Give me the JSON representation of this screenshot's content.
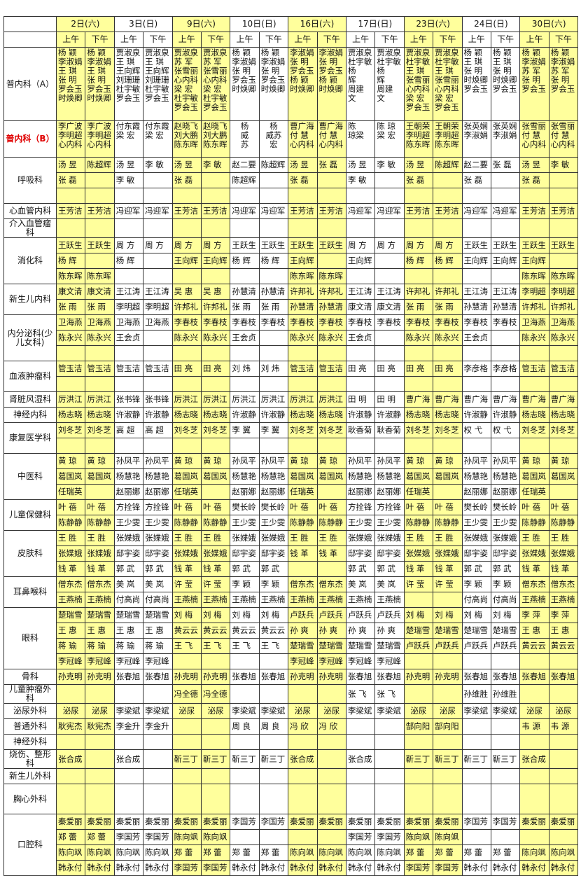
{
  "header": {
    "days": [
      "2日(六)",
      "3日(日)",
      "9日(六)",
      "10日(日)",
      "16日(六)",
      "17日(日)",
      "23日(六)",
      "24日(日)",
      "30日(六)"
    ],
    "am": "上午",
    "pm": "下午"
  },
  "colors": {
    "saturday_highlight": "#ffff9c",
    "highlight_dept_label": "#e00000"
  },
  "departments": [
    {
      "name": "普内科（A）",
      "rows": [
        [
          "杨 颖\n李淑娟\n王 琪\n张 明\n罗会玉\n时焕卿",
          "杨 颖\n李淑娟\n王 琪\n张 明\n罗会玉\n时焕卿",
          "贾淑泉\n王 琪\n王向辉\n刘珊珊\n杜宇敏\n罗会玉",
          "贾淑泉\n王 琪\n王向辉\n刘珊珊\n杜宇敏\n罗会玉",
          "贾淑泉\n苏 军\n张雪丽\n心内科\n梁 宏\n杜宇敏\n罗会玉",
          "贾淑泉\n苏 军\n张雪丽\n心内科\n梁 宏\n杜宇敏\n罗会玉",
          "杨 颖\n李淑娟\n张 明\n罗会玉\n时焕卿",
          "杨 颖\n李淑娟\n张 明\n罗会玉\n时焕卿",
          "李淑娟\n张 明\n罗会玉\n杨 颖\n时焕卿",
          "李淑娟\n张 明\n罗会玉\n杨 颖\n时焕卿",
          "贾淑泉\n杜宇敏\n杨\n辉\n周建\n文",
          "贾淑泉\n杜宇敏\n杨\n辉\n周建\n文",
          "贾淑泉\n杜宇敏\n王 琪\n张雪丽\n心内科\n梁 宏\n罗会玉",
          "贾淑泉\n杜宇敏\n王 琪\n张雪丽\n心内科\n梁 宏\n罗会玉",
          "杨 颖\n王 琪\n张 明\n时焕卿\n罗会玉",
          "杨 颖\n王 琪\n张 明\n时焕卿\n罗会玉",
          "杨 颖\n李淑娟\n苏 军\n张 明\n罗会玉",
          "杨 颖\n李淑娟\n苏 军\n张 明\n罗会玉"
        ]
      ]
    },
    {
      "name": "普内科（B）",
      "rows": [
        [
          "李广波\n李明超\n心内科",
          "李广波\n李明超\n心内科",
          "付东霞\n梁 宏",
          "付东霞\n梁 宏",
          "赵晓飞\n刘大鹏\n陈东晖",
          "赵晓飞\n刘大鹏\n陈东晖",
          "杨\n威\n苏",
          "杨\n威苏\n宏",
          "曹广海\n付 慧\n心内科",
          "曹广海\n付 慧\n心内科",
          "陈\n琼梁",
          "陈 琼\n梁 宏",
          "王朝荣\n李明超\n陈东晖",
          "王朝荣\n李明超\n陈东晖",
          "张英娴\n李淑娟",
          "张英娴\n李淑娟",
          "张雪丽\n付 慧\n心内科",
          "张雪丽\n付 慧\n心内科"
        ]
      ]
    },
    {
      "name": "呼吸科",
      "rows": [
        [
          "汤 昱",
          "陈超辉",
          "汤 昱",
          "李 敏",
          "汤 昱",
          "李 敏",
          "赵二要",
          "陈超辉",
          "汤 昱",
          "张 磊",
          "汤 昱",
          "李 敏",
          "汤 昱",
          "陈超辉",
          "赵二要",
          "张 磊",
          "汤 昱",
          "李 敏"
        ],
        [
          "张 磊",
          "",
          "李 敏",
          "",
          "张 磊",
          "",
          "陈超辉",
          "",
          "张 磊",
          "",
          "李 敏",
          "",
          "张 磊",
          "",
          "张 磊",
          "",
          "张 磊",
          ""
        ],
        [
          "",
          "",
          "",
          "",
          "",
          "",
          "",
          "",
          "",
          "",
          "",
          "",
          "",
          "",
          "",
          "",
          "",
          ""
        ]
      ]
    },
    {
      "name": "心血管内科",
      "rows": [
        [
          "王芳洁",
          "王芳洁",
          "冯迎军",
          "冯迎军",
          "王芳洁",
          "王芳洁",
          "冯迎军",
          "冯迎军",
          "王芳洁",
          "王芳洁",
          "冯迎军",
          "冯迎军",
          "王芳洁",
          "王芳洁",
          "冯迎军",
          "冯迎军",
          "王芳洁",
          "王芳洁"
        ]
      ]
    },
    {
      "name": "介入血管瘤科",
      "rows": [
        [
          "",
          "",
          "",
          "",
          "",
          "",
          "",
          "",
          "",
          "",
          "",
          "",
          "",
          "",
          "",
          "",
          "",
          ""
        ]
      ]
    },
    {
      "name": "消化科",
      "rows": [
        [
          "王跃生",
          "王跃生",
          "周 方",
          "周 方",
          "周 方",
          "周 方",
          "王跃生",
          "王跃生",
          "王跃生",
          "王跃生",
          "周 方",
          "周 方",
          "周 方",
          "周 方",
          "王跃生",
          "王跃生",
          "王跃生",
          "王跃生"
        ],
        [
          "杨 辉",
          "",
          "杨 辉",
          "",
          "王向辉",
          "王向辉",
          "杨 辉",
          "杨 辉",
          "王向辉",
          "",
          "王向辉",
          "",
          "杨 辉",
          "杨 辉",
          "王向辉",
          "王向辉",
          "王向辉",
          ""
        ],
        [
          "陈东晖",
          "陈东晖",
          "",
          "",
          "",
          "",
          "",
          "",
          "陈东晖",
          "陈东晖",
          "",
          "",
          "",
          "",
          "",
          "",
          "陈东晖",
          "陈东晖"
        ]
      ]
    },
    {
      "name": "新生儿内科",
      "rows": [
        [
          "康文清",
          "康文清",
          "王江涛",
          "王江涛",
          "吴 惠",
          "吴 惠",
          "孙慧清",
          "孙慧清",
          "许邦礼",
          "许邦礼",
          "王江涛",
          "王江涛",
          "许邦礼",
          "许邦礼",
          "王江涛",
          "王江涛",
          "李明超",
          "李明超"
        ],
        [
          "张 雨",
          "张 雨",
          "李明超",
          "李明超",
          "许邦礼",
          "许邦礼",
          "张 雨",
          "张 雨",
          "孙慧清",
          "孙慧清",
          "康文清",
          "康文清",
          "张 雨",
          "张 雨",
          "孙慧清",
          "孙慧清",
          "许邦礼",
          "许邦礼"
        ]
      ]
    },
    {
      "name": "内分泌科(少儿女科)",
      "rows": [
        [
          "卫海燕",
          "卫海燕",
          "卫海燕",
          "卫海燕",
          "李春枝",
          "李春枝",
          "李春枝",
          "李春枝",
          "李春枝",
          "李春枝",
          "李春枝",
          "李春枝",
          "李春枝",
          "李春枝",
          "李春枝",
          "李春枝",
          "卫海燕",
          "卫海燕"
        ],
        [
          "陈永兴",
          "陈永兴",
          "王会贞",
          "",
          "陈永兴",
          "陈永兴",
          "王会贞",
          "",
          "陈永兴",
          "陈永兴",
          "王会贞",
          "",
          "陈永兴",
          "陈永兴",
          "王会贞",
          "",
          "陈永兴",
          "陈永兴"
        ],
        [
          "",
          "",
          "",
          "",
          "",
          "",
          "",
          "",
          "",
          "",
          "",
          "",
          "",
          "",
          "",
          "",
          "",
          ""
        ]
      ]
    },
    {
      "name": "血液肿瘤科",
      "rows": [
        [
          "管玉洁",
          "管玉洁",
          "管玉洁",
          "管玉洁",
          "田 亮",
          "田 亮",
          "刘 炜",
          "刘 炜",
          "管玉洁",
          "管玉洁",
          "田 亮",
          "田 亮",
          "田 亮",
          "田 亮",
          "李彦格",
          "李彦格",
          "管玉洁",
          "管玉洁"
        ],
        [
          "",
          "",
          "",
          "",
          "",
          "",
          "",
          "",
          "",
          "",
          "",
          "",
          "",
          "",
          "",
          "",
          "",
          ""
        ]
      ]
    },
    {
      "name": "肾脏风湿科",
      "rows": [
        [
          "厉洪江",
          "厉洪江",
          "张书锋",
          "张书锋",
          "厉洪江",
          "厉洪江",
          "厉洪江",
          "厉洪江",
          "厉洪江",
          "厉洪江",
          "田 明",
          "田 明",
          "曹广海",
          "曹广海",
          "曹广海",
          "曹广海",
          "曹广海",
          "曹广海"
        ]
      ]
    },
    {
      "name": "神经内科",
      "rows": [
        [
          "杨志晓",
          "杨志晓",
          "许淑静",
          "许淑静",
          "杨志晓",
          "杨志晓",
          "许淑静",
          "许淑静",
          "杨志晓",
          "杨志晓",
          "许淑静",
          "许淑静",
          "杨志晓",
          "杨志晓",
          "许淑静",
          "许淑静",
          "杨志晓",
          "杨志晓"
        ]
      ]
    },
    {
      "name": "康复医学科",
      "rows": [
        [
          "刘冬芝",
          "刘冬芝",
          "高 超",
          "高 超",
          "刘冬芝",
          "刘冬芝",
          "李 翼",
          "李 翼",
          "刘冬芝",
          "刘冬芝",
          "耿香菊",
          "耿香菊",
          "刘冬芝",
          "刘冬芝",
          "权 弋",
          "权 弋",
          "刘冬芝",
          "刘冬芝"
        ],
        [
          "",
          "",
          "",
          "",
          "",
          "",
          "",
          "",
          "",
          "",
          "",
          "",
          "",
          "",
          "",
          "",
          "",
          ""
        ]
      ]
    },
    {
      "name": "中医科",
      "rows": [
        [
          "黄 琼",
          "黄 琼",
          "孙凤平",
          "孙凤平",
          "黄 琼",
          "黄 琼",
          "孙凤平",
          "孙凤平",
          "黄 琼",
          "黄 琼",
          "孙凤平",
          "孙凤平",
          "黄 琼",
          "黄 琼",
          "孙凤平",
          "孙凤平",
          "黄 琼",
          "黄 琼"
        ],
        [
          "葛国岚",
          "葛国岚",
          "杨慧艳",
          "杨慧艳",
          "葛国岚",
          "葛国岚",
          "杨慧艳",
          "杨慧艳",
          "葛国岚",
          "葛国岚",
          "杨慧艳",
          "杨慧艳",
          "葛国岚",
          "葛国岚",
          "杨慧艳",
          "杨慧艳",
          "葛国岚",
          "葛国岚"
        ],
        [
          "任瑞英",
          "",
          "赵丽娜",
          "赵丽娜",
          "任瑞英",
          "",
          "赵丽娜",
          "赵丽娜",
          "任瑞英",
          "",
          "赵丽娜",
          "赵丽娜",
          "任瑞英",
          "",
          "赵丽娜",
          "赵丽娜",
          "任瑞英",
          ""
        ]
      ]
    },
    {
      "name": "儿童保健科",
      "rows": [
        [
          "叶 蓓",
          "叶 蓓",
          "方拴锋",
          "方拴锋",
          "叶 蓓",
          "叶 蓓",
          "樊长岭",
          "樊长岭",
          "叶 蓓",
          "叶 蓓",
          "方拴锋",
          "方拴锋",
          "叶 蓓",
          "叶 蓓",
          "樊长岭",
          "樊长岭",
          "叶 蓓",
          "叶 蓓"
        ],
        [
          "陈静静",
          "陈静静",
          "王少雯",
          "王少雯",
          "陈静静",
          "陈静静",
          "王少雯",
          "王少雯",
          "陈静静",
          "陈静静",
          "王少雯",
          "王少雯",
          "陈静静",
          "陈静静",
          "王少雯",
          "王少雯",
          "陈静静",
          "陈静静"
        ]
      ]
    },
    {
      "name": "皮肤科",
      "rows": [
        [
          "王 胜",
          "王 胜",
          "张媟娥",
          "张媟娥",
          "王 胜",
          "王 胜",
          "张媟娥",
          "张媟娥",
          "王 胜",
          "王 胜",
          "张媟娥",
          "张媟娥",
          "王 胜",
          "王 胜",
          "张媟娥",
          "张媟娥",
          "王 胜",
          "王 胜"
        ],
        [
          "张媟娥",
          "张媟娥",
          "邸宇姿",
          "邸宇姿",
          "张媟娥",
          "张媟娥",
          "邸宇姿",
          "邸宇姿",
          "钱 革",
          "钱 革",
          "邸宇姿",
          "邸宇姿",
          "张媟娥",
          "张媟娥",
          "邸宇姿",
          "邸宇姿",
          "张媟娥",
          "张媟娥"
        ],
        [
          "钱 革",
          "钱 革",
          "郭 武",
          "郭 武",
          "钱 革",
          "钱 革",
          "郭 武",
          "郭 武",
          "",
          "",
          "郭 武",
          "郭 武",
          "钱 革",
          "钱 革",
          "郭 武",
          "郭 武",
          "钱 革",
          "钱 革"
        ]
      ]
    },
    {
      "name": "耳鼻喉科",
      "rows": [
        [
          "僧东杰",
          "僧东杰",
          "美 岚",
          "美 岚",
          "许 莹",
          "许 莹",
          "李 颖",
          "李 颖",
          "僧东杰",
          "僧东杰",
          "美 岚",
          "美 岚",
          "许 莹",
          "许 莹",
          "李 颖",
          "李 颖",
          "僧东杰",
          "僧东杰"
        ],
        [
          "王燕楠",
          "王燕楠",
          "付高尚",
          "付高尚",
          "王燕楠",
          "王燕楠",
          "王燕楠",
          "王燕楠",
          "王燕楠",
          "王燕楠",
          "王燕楠",
          "王燕楠",
          "",
          "",
          "付高尚",
          "付高尚",
          "王燕楠",
          "王燕楠"
        ]
      ]
    },
    {
      "name": "眼科",
      "rows": [
        [
          "楚瑞雪",
          "楚瑞雪",
          "楚瑞雪",
          "楚瑞雪",
          "刘 梅",
          "刘 梅",
          "刘 梅",
          "刘 梅",
          "卢跃兵",
          "卢跃兵",
          "卢跃兵",
          "卢跃兵",
          "刘 梅",
          "刘 梅",
          "刘 梅",
          "刘 梅",
          "李 萍",
          "李 萍"
        ],
        [
          "王 惠",
          "王 惠",
          "王 惠",
          "王 惠",
          "黄云云",
          "黄云云",
          "黄云云",
          "黄云云",
          "孙 爽",
          "孙 爽",
          "孙 爽",
          "孙 爽",
          "楚瑞雪",
          "楚瑞雪",
          "楚瑞雪",
          "楚瑞雪",
          "王 惠",
          "王 惠"
        ],
        [
          "蒋 瑜",
          "蒋 瑜",
          "蒋 瑜",
          "蒋 瑜",
          "王 飞",
          "王 飞",
          "王 飞",
          "王 飞",
          "楚瑞雪",
          "楚瑞雪",
          "楚瑞雪",
          "楚瑞雪",
          "卢跃兵",
          "卢跃兵",
          "卢跃兵",
          "卢跃兵",
          "黄云云",
          "黄云云"
        ],
        [
          "李冠峰",
          "李冠峰",
          "李冠峰",
          "李冠峰",
          "",
          "",
          "",
          "",
          "李冠峰",
          "李冠峰",
          "李冠峰",
          "李冠峰",
          "",
          "",
          "",
          "",
          "",
          ""
        ]
      ]
    },
    {
      "name": "骨科",
      "rows": [
        [
          "孙克明",
          "孙克明",
          "张春旭",
          "张春旭",
          "孙克明",
          "孙克明",
          "张春旭",
          "张春旭",
          "孙克明",
          "孙克明",
          "张春旭",
          "张春旭",
          "孙克明",
          "孙克明",
          "张春旭",
          "张春旭",
          "张春旭",
          "张春旭"
        ]
      ]
    },
    {
      "name": "儿童肿瘤外科",
      "rows": [
        [
          "",
          "",
          "",
          "",
          "冯全德",
          "冯全德",
          "",
          "",
          "",
          "",
          "张 飞",
          "张 飞",
          "",
          "",
          "孙维胜",
          "孙维胜",
          "",
          ""
        ]
      ]
    },
    {
      "name": "泌尿外科",
      "rows": [
        [
          "泌尿",
          "泌尿",
          "李梁斌",
          "李梁斌",
          "泌尿",
          "泌尿",
          "李梁斌",
          "李梁斌",
          "泌尿",
          "泌尿",
          "李梁斌",
          "李梁斌",
          "泌尿",
          "泌尿",
          "李梁斌",
          "李梁斌",
          "泌尿",
          "泌尿"
        ]
      ]
    },
    {
      "name": "普通外科",
      "rows": [
        [
          "耿宪杰",
          "耿宪杰",
          "李金升",
          "李金升",
          "",
          "",
          "周 良",
          "周 良",
          "冯 欣",
          "冯 欣",
          "",
          "",
          "郜向阳",
          "郜向阳",
          "",
          "",
          "韦 源",
          "韦 源"
        ]
      ]
    },
    {
      "name": "神经外科",
      "rows": [
        [
          "",
          "",
          "",
          "",
          "",
          "",
          "",
          "",
          "",
          "",
          "",
          "",
          "",
          "",
          "",
          "",
          "",
          ""
        ]
      ]
    },
    {
      "name": "烧伤、整形科",
      "rows": [
        [
          "张合成",
          "",
          "张合成",
          "",
          "靳三丁",
          "靳三丁",
          "靳三丁",
          "靳三丁",
          "张合成",
          "",
          "张合成",
          "",
          "靳三丁",
          "靳三丁",
          "靳三丁",
          "靳三丁",
          "张合成",
          ""
        ]
      ]
    },
    {
      "name": "新生儿外科",
      "rows": [
        [
          "",
          "",
          "",
          "",
          "",
          "",
          "",
          "",
          "",
          "",
          "",
          "",
          "",
          "",
          "",
          "",
          "",
          ""
        ]
      ]
    },
    {
      "name": "胸心外科",
      "rows": [
        [
          "",
          "",
          "",
          "",
          "",
          "",
          "",
          "",
          "",
          "",
          "",
          "",
          "",
          "",
          "",
          "",
          "",
          ""
        ]
      ]
    },
    {
      "name": "口腔科",
      "rows": [
        [
          "秦爱丽",
          "秦爱丽",
          "秦爱丽",
          "秦爱丽",
          "秦爱丽",
          "秦爱丽",
          "李国芳",
          "李国芳",
          "秦爱丽",
          "秦爱丽",
          "秦爱丽",
          "秦爱丽",
          "秦爱丽",
          "秦爱丽",
          "李国芳",
          "李国芳",
          "秦爱丽",
          "秦爱丽"
        ],
        [
          "郑 蕾",
          "郑 蕾",
          "李国芳",
          "李国芳",
          "陈向飒",
          "陈向飒",
          "",
          "",
          "",
          "",
          "李国芳",
          "李国芳",
          "陈向飒",
          "陈向飒",
          "",
          "",
          "",
          ""
        ],
        [
          "陈向飒",
          "陈向飒",
          "陈向飒",
          "陈向飒",
          "郑 蕾",
          "郑 蕾",
          "郑 蕾",
          "郑 蕾",
          "陈向飒",
          "陈向飒",
          "陈向飒",
          "陈向飒",
          "郑 蕾",
          "郑 蕾",
          "郑 蕾",
          "郑 蕾",
          "陈向飒",
          "陈向飒"
        ],
        [
          "韩永付",
          "韩永付",
          "韩永付",
          "韩永付",
          "李国芳",
          "李国芳",
          "韩永付",
          "韩永付",
          "韩永付",
          "韩永付",
          "韩永付",
          "韩永付",
          "李国芳",
          "李国芳",
          "韩永付",
          "韩永付",
          "韩永付",
          "韩永付"
        ]
      ]
    }
  ]
}
